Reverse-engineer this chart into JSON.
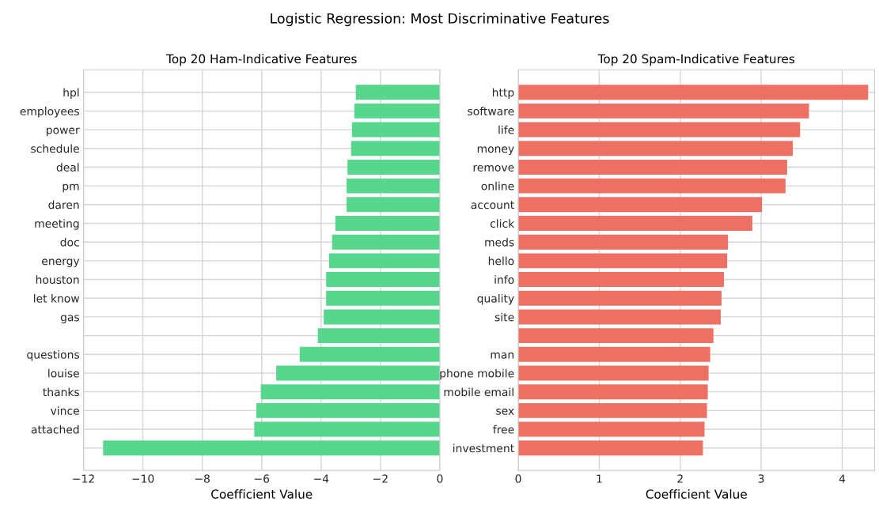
{
  "chart_data": [
    {
      "type": "bar",
      "orientation": "horizontal",
      "title": "Top 20 Ham-Indicative Features",
      "xlabel": "Coefficient Value",
      "annotations": [
        "Logistic Regression: Most Discriminative Features"
      ],
      "categories": [
        "hpl",
        "employees",
        "power",
        "schedule",
        "deal",
        "pm",
        "daren",
        "meeting",
        "doc",
        "energy",
        "houston",
        "let know",
        "gas",
        null,
        "questions",
        "louise",
        "thanks",
        "vince",
        "attached",
        null
      ],
      "values": [
        -2.83,
        -2.88,
        -2.96,
        -2.99,
        -3.11,
        -3.14,
        -3.14,
        -3.52,
        -3.63,
        -3.73,
        -3.83,
        -3.83,
        -3.91,
        -4.11,
        -4.72,
        -5.51,
        -6.03,
        -6.18,
        -6.25,
        -11.34
      ],
      "color": "#58d68d",
      "xlim": [
        -12,
        0
      ],
      "xticks": [
        {
          "value": -12,
          "label": "−12"
        },
        {
          "value": -10,
          "label": "−10"
        },
        {
          "value": -8,
          "label": "−8"
        },
        {
          "value": -6,
          "label": "−6"
        },
        {
          "value": -4,
          "label": "−4"
        },
        {
          "value": -2,
          "label": "−2"
        },
        0
      ],
      "grid": true
    },
    {
      "type": "bar",
      "orientation": "horizontal",
      "title": "Top 20 Spam-Indicative Features",
      "xlabel": "Coefficient Value",
      "categories": [
        "http",
        "software",
        "life",
        "money",
        "remove",
        "online",
        "account",
        "click",
        "meds",
        "hello",
        "info",
        "quality",
        "site",
        null,
        "man",
        "phone mobile",
        "mobile email",
        "sex",
        "free",
        "investment"
      ],
      "values": [
        4.32,
        3.59,
        3.48,
        3.39,
        3.32,
        3.3,
        3.01,
        2.89,
        2.59,
        2.58,
        2.54,
        2.51,
        2.5,
        2.41,
        2.37,
        2.35,
        2.34,
        2.33,
        2.3,
        2.28
      ],
      "color": "#ec7063",
      "xlim": [
        0,
        4.4
      ],
      "xticks": [
        0,
        1,
        2,
        3,
        4
      ],
      "grid": true
    }
  ]
}
